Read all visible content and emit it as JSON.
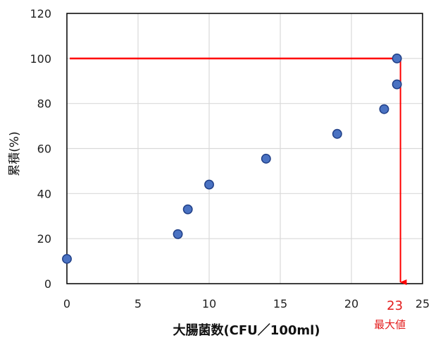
{
  "colors": {
    "marker_fill": "#4a72c2",
    "marker_stroke": "#1f3e86",
    "highlight": "#ff0000",
    "grid": "#d9d9d9",
    "axis": "#000000"
  },
  "chart_data": {
    "type": "scatter",
    "title": "",
    "xlabel": "大腸菌数(CFU／100ml)",
    "ylabel": "累積(%)",
    "xlim": [
      0,
      25
    ],
    "ylim": [
      0,
      120
    ],
    "x_ticks": [
      0,
      5,
      10,
      15,
      20,
      25
    ],
    "y_ticks": [
      0,
      20,
      40,
      60,
      80,
      100,
      120
    ],
    "grid": true,
    "legend": "none",
    "series": [
      {
        "points": [
          {
            "x": 0,
            "y": 11
          },
          {
            "x": 7.8,
            "y": 22
          },
          {
            "x": 8.5,
            "y": 33
          },
          {
            "x": 10,
            "y": 44
          },
          {
            "x": 14,
            "y": 55.5
          },
          {
            "x": 19,
            "y": 66.5
          },
          {
            "x": 22.3,
            "y": 77.5
          },
          {
            "x": 23.2,
            "y": 88.5
          },
          {
            "x": 23.2,
            "y": 100
          }
        ]
      }
    ],
    "annotations": {
      "horizontal_line_y": 100,
      "horizontal_line_x_from": 0.2,
      "vertical_arrow_x": 23.2,
      "vertical_arrow_y_from": 100,
      "vertical_arrow_y_to": 0,
      "value_label": "23",
      "caption": "最大値"
    }
  }
}
